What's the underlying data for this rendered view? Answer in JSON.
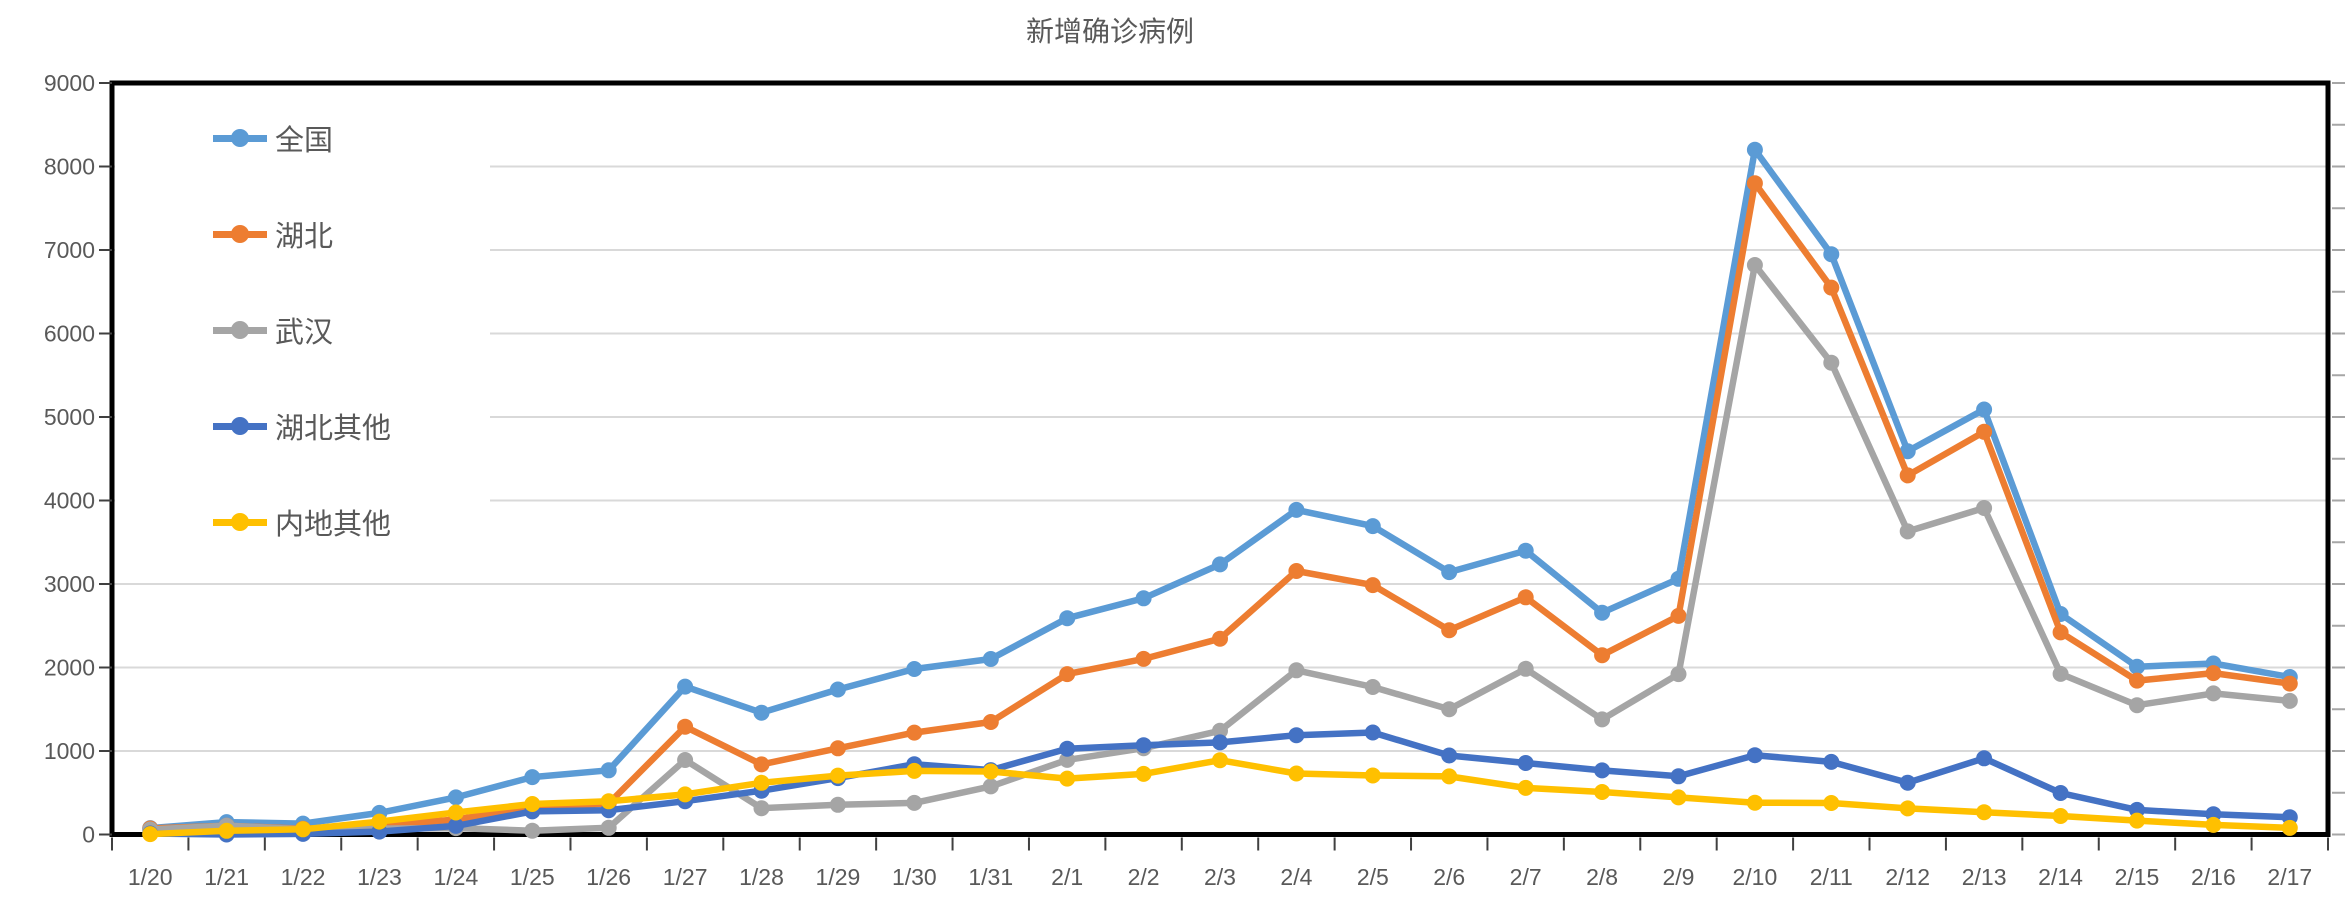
{
  "chart_data": {
    "type": "line",
    "title": "新增确诊病例",
    "x": [
      "1/20",
      "1/21",
      "1/22",
      "1/23",
      "1/24",
      "1/25",
      "1/26",
      "1/27",
      "1/28",
      "1/29",
      "1/30",
      "1/31",
      "2/1",
      "2/2",
      "2/3",
      "2/4",
      "2/5",
      "2/6",
      "2/7",
      "2/8",
      "2/9",
      "2/10",
      "2/11",
      "2/12",
      "2/13",
      "2/14",
      "2/15",
      "2/16",
      "2/17"
    ],
    "series": [
      {
        "id": "national",
        "name": "全国",
        "color": "#5B9BD5",
        "values": [
          77,
          149,
          131,
          259,
          444,
          688,
          769,
          1771,
          1459,
          1737,
          1982,
          2102,
          2590,
          2829,
          3235,
          3887,
          3694,
          3143,
          3399,
          2656,
          3062,
          8200,
          6950,
          4590,
          5090,
          2641,
          2009,
          2048,
          1886
        ]
      },
      {
        "id": "hubei",
        "name": "湖北",
        "color": "#ED7D31",
        "values": [
          72,
          105,
          69,
          105,
          180,
          323,
          371,
          1291,
          840,
          1032,
          1220,
          1347,
          1921,
          2103,
          2345,
          3156,
          2987,
          2447,
          2841,
          2147,
          2618,
          7800,
          6550,
          4300,
          4823,
          2420,
          1843,
          1933,
          1807
        ]
      },
      {
        "id": "wuhan",
        "name": "武汉",
        "color": "#A5A5A5",
        "values": [
          60,
          105,
          62,
          70,
          77,
          46,
          80,
          892,
          315,
          356,
          378,
          576,
          894,
          1033,
          1242,
          1967,
          1766,
          1501,
          1985,
          1379,
          1921,
          6820,
          5650,
          3630,
          3910,
          1923,
          1548,
          1690,
          1600
        ]
      },
      {
        "id": "hubei-other",
        "name": "湖北其他",
        "color": "#4472C4",
        "values": [
          12,
          0,
          7,
          35,
          103,
          277,
          291,
          399,
          525,
          676,
          842,
          771,
          1027,
          1070,
          1103,
          1189,
          1221,
          946,
          856,
          768,
          697,
          950,
          870,
          620,
          913,
          497,
          295,
          243,
          207
        ]
      },
      {
        "id": "mainland-other",
        "name": "内地其他",
        "color": "#FFC000",
        "values": [
          5,
          44,
          62,
          154,
          264,
          365,
          398,
          480,
          619,
          705,
          762,
          755,
          669,
          726,
          890,
          731,
          707,
          696,
          558,
          509,
          444,
          381,
          377,
          312,
          267,
          221,
          166,
          115,
          79
        ]
      }
    ],
    "ylim": [
      0,
      9000
    ],
    "ytick_step": 1000,
    "yticks": [
      "0",
      "1000",
      "2000",
      "3000",
      "4000",
      "5000",
      "6000",
      "7000",
      "8000",
      "9000"
    ],
    "grid": "horizontal",
    "legend_position": "inside-top-left",
    "colors": {
      "gridline": "#D9D9D9",
      "plot_border": "#000000",
      "axis_text": "#595959",
      "tick": "#404040",
      "minor_tick_right": "#A6A6A6"
    }
  }
}
